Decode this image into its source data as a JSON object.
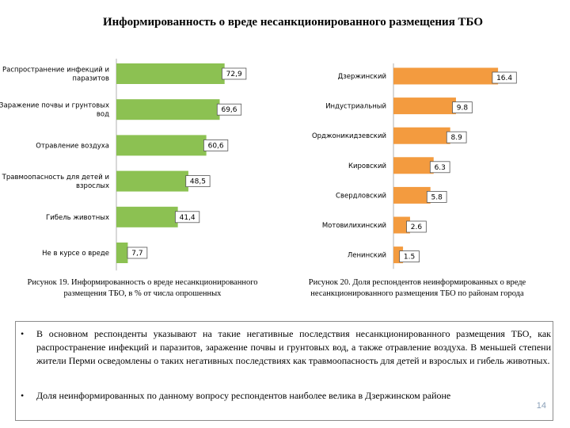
{
  "title": "Информированность о вреде несанкционированного  размещения ТБО",
  "colors": {
    "green": "#8cc152",
    "orange": "#f39b3f",
    "axis": "#b0b0b0"
  },
  "chart_data": [
    {
      "type": "bar",
      "orientation": "horizontal",
      "title": "",
      "categories": [
        "Распространение инфекций и паразитов",
        "Заражение почвы и грунтовых вод",
        "Отравление воздуха",
        "Травмоопасность для детей и взрослых",
        "Гибель животных",
        "Не в курсе о вреде"
      ],
      "values": [
        72.9,
        69.6,
        60.6,
        48.5,
        41.4,
        7.7
      ],
      "labels": [
        "72,9",
        "69,6",
        "60,6",
        "48,5",
        "41,4",
        "7,7"
      ],
      "xlim": [
        0,
        80
      ],
      "color": "#8cc152"
    },
    {
      "type": "bar",
      "orientation": "horizontal",
      "title": "",
      "categories": [
        "Дзержинский",
        "Индустриальный",
        "Орджоникидзевский",
        "Кировский",
        "Свердловский",
        "Мотовилихинский",
        "Ленинский"
      ],
      "values": [
        16.4,
        9.8,
        8.9,
        6.3,
        5.8,
        2.6,
        1.5
      ],
      "labels": [
        "16.4",
        "9.8",
        "8.9",
        "6.3",
        "5.8",
        "2.6",
        "1.5"
      ],
      "xlim": [
        0,
        18
      ],
      "color": "#f39b3f"
    }
  ],
  "captions": {
    "fig19": "Рисунок 19. Информированность о вреде несанкционированного размещения ТБО, в % от числа опрошенных",
    "fig20": "Рисунок 20. Доля респондентов неинформированных о вреде несанкционированного размещения ТБО по районам города"
  },
  "bullets": [
    "В основном респонденты указывают на такие негативные последствия несанкционированного размещения ТБО, как распространение инфекций и паразитов, заражение почвы и грунтовых вод, а также отравление воздуха. В меньшей степени жители Перми осведомлены о таких негативных последствиях как травмоопасность для детей и взрослых и гибель животных.",
    "Доля неинформированных по данному вопросу респондентов наиболее велика в Дзержинском районе"
  ],
  "bullet_symbol": "•",
  "page_number": "14"
}
